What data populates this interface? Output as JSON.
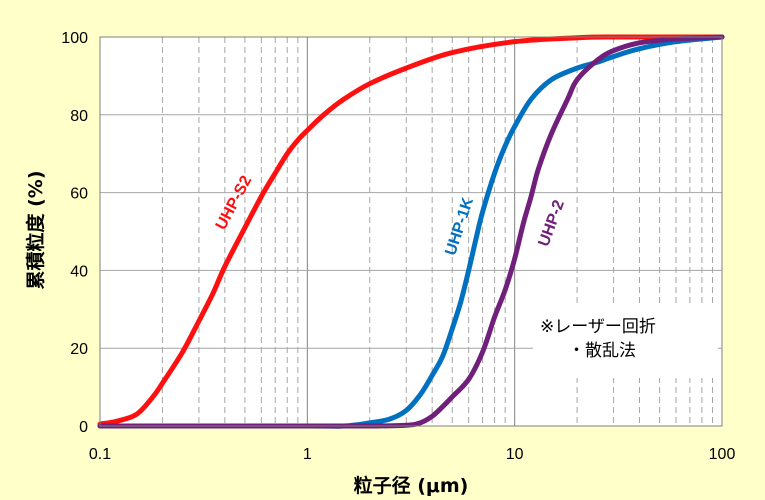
{
  "chart_data": {
    "type": "line",
    "x_scale": "log",
    "xlim": [
      0.1,
      100
    ],
    "ylim": [
      0,
      100
    ],
    "xlabel": "粒子径 (μm)",
    "ylabel": "累積粒度 (%)",
    "x_ticks": [
      "0.1",
      "1",
      "10",
      "100"
    ],
    "y_ticks": [
      "0",
      "20",
      "40",
      "60",
      "80",
      "100"
    ],
    "grid": true,
    "series": [
      {
        "name": "UHP-S2",
        "color": "#ff1010",
        "points": [
          [
            0.1,
            0.5
          ],
          [
            0.12,
            1.2
          ],
          [
            0.15,
            3
          ],
          [
            0.18,
            7.5
          ],
          [
            0.2,
            11
          ],
          [
            0.25,
            19
          ],
          [
            0.3,
            27
          ],
          [
            0.35,
            34
          ],
          [
            0.4,
            41
          ],
          [
            0.5,
            51
          ],
          [
            0.6,
            59
          ],
          [
            0.7,
            65
          ],
          [
            0.8,
            70
          ],
          [
            0.9,
            73.5
          ],
          [
            1,
            76
          ],
          [
            1.2,
            80
          ],
          [
            1.5,
            84
          ],
          [
            2,
            88
          ],
          [
            3,
            92
          ],
          [
            5,
            96
          ],
          [
            10,
            98.8
          ],
          [
            20,
            99.8
          ],
          [
            30,
            100
          ],
          [
            100,
            100
          ]
        ]
      },
      {
        "name": "UHP-1K",
        "color": "#0070c0",
        "points": [
          [
            0.1,
            0
          ],
          [
            1,
            0
          ],
          [
            1.5,
            0
          ],
          [
            2,
            0.8
          ],
          [
            2.5,
            1.8
          ],
          [
            3,
            4
          ],
          [
            3.5,
            8
          ],
          [
            4,
            13
          ],
          [
            4.5,
            18
          ],
          [
            5,
            25
          ],
          [
            5.5,
            32
          ],
          [
            6,
            40
          ],
          [
            6.5,
            48
          ],
          [
            7,
            55
          ],
          [
            8,
            65
          ],
          [
            9,
            72
          ],
          [
            10,
            77
          ],
          [
            12,
            84
          ],
          [
            15,
            89
          ],
          [
            20,
            92
          ],
          [
            25,
            93.5
          ],
          [
            30,
            95
          ],
          [
            40,
            97
          ],
          [
            60,
            98.8
          ],
          [
            100,
            100
          ]
        ]
      },
      {
        "name": "UHP-2",
        "color": "#70207a",
        "points": [
          [
            0.1,
            0
          ],
          [
            1,
            0
          ],
          [
            2,
            0
          ],
          [
            3,
            0.2
          ],
          [
            3.5,
            0.8
          ],
          [
            4,
            2.5
          ],
          [
            4.5,
            5
          ],
          [
            5,
            7.5
          ],
          [
            6,
            12
          ],
          [
            7,
            19
          ],
          [
            8,
            28
          ],
          [
            9,
            35
          ],
          [
            10,
            43
          ],
          [
            11,
            52
          ],
          [
            12,
            59
          ],
          [
            13,
            66
          ],
          [
            15,
            75
          ],
          [
            18,
            84
          ],
          [
            20,
            89
          ],
          [
            25,
            94
          ],
          [
            30,
            96.5
          ],
          [
            40,
            98.5
          ],
          [
            60,
            99.5
          ],
          [
            100,
            100
          ]
        ]
      }
    ],
    "annotations": [
      "※レーザー回折",
      "・散乱法"
    ]
  }
}
